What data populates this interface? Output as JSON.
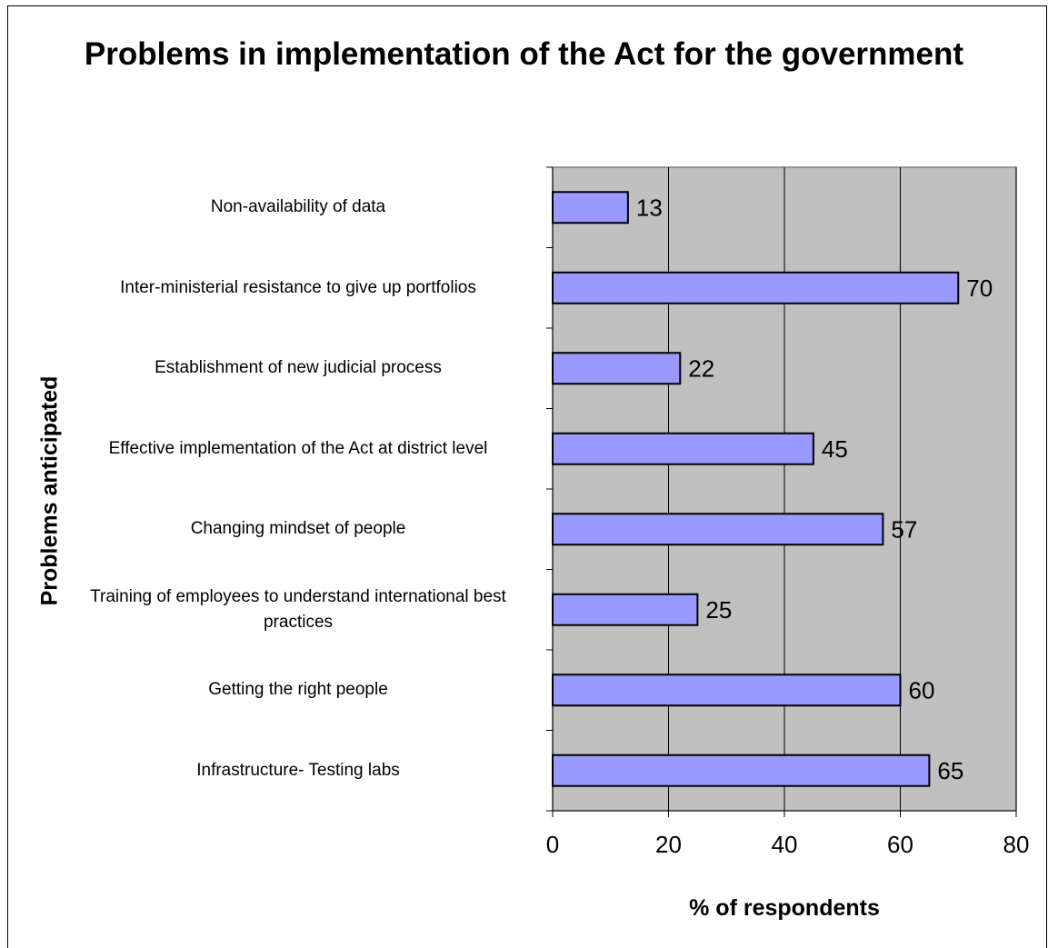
{
  "chart_data": {
    "type": "bar",
    "orientation": "horizontal",
    "title": "Problems in implementation of the Act for the government",
    "xlabel": "% of respondents",
    "ylabel": "Problems anticipated",
    "categories": [
      "Non-availability of data",
      "Inter-ministerial resistance to give up portfolios",
      "Establishment of new judicial process",
      "Effective implementation of the Act at district level",
      "Changing mindset of people",
      "Training of employees to understand international best practices",
      "Getting the right people",
      "Infrastructure- Testing labs"
    ],
    "values": [
      13,
      70,
      22,
      45,
      57,
      25,
      60,
      65
    ],
    "xlim": [
      0,
      80
    ],
    "xticks": [
      "0",
      "20",
      "40",
      "60",
      "80"
    ],
    "grid": true,
    "data_labels": true,
    "colors": {
      "bar_fill": "#9999ff",
      "bar_stroke": "#000000",
      "plot_background": "#c0c0c0",
      "gridline": "#000000"
    }
  }
}
